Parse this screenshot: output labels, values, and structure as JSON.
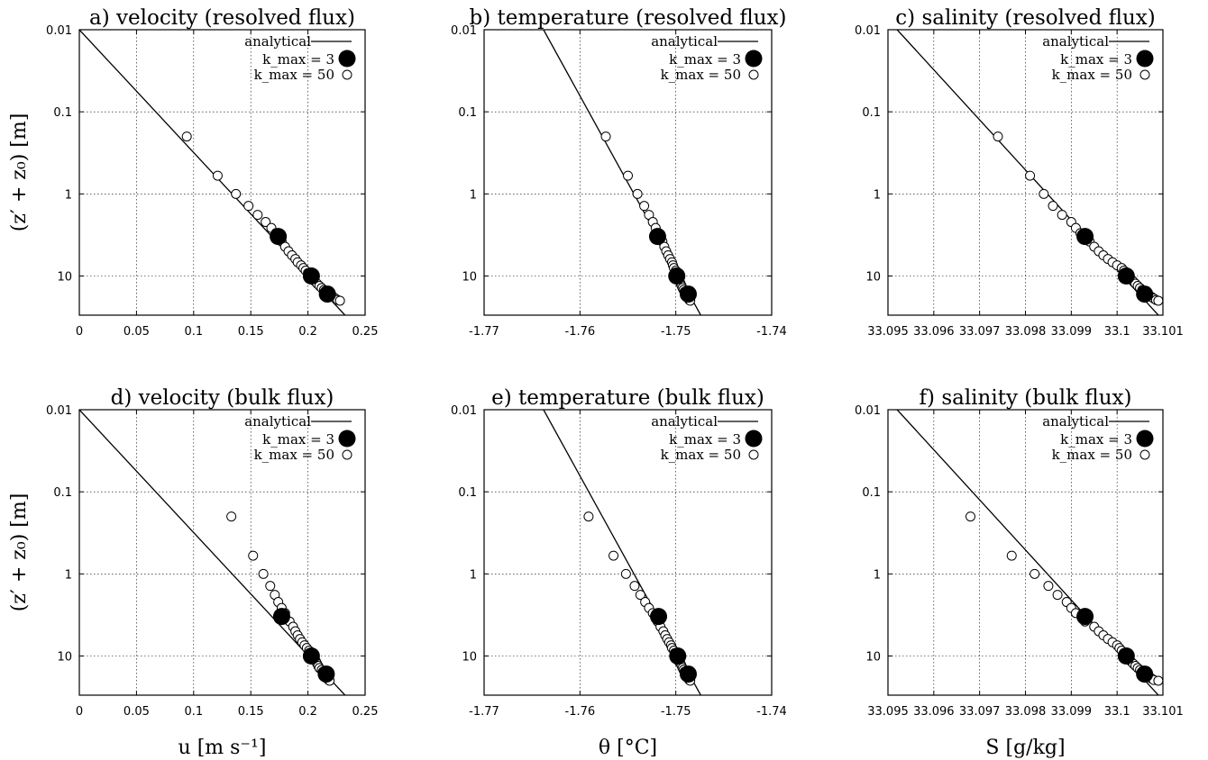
{
  "legend": {
    "analytical": "analytical",
    "kmax3": "k_max = 3",
    "kmax50": "k_max = 50"
  },
  "y_axis": {
    "label": "(z′ + z₀) [m]",
    "ticks": [
      "0.01",
      "0.1",
      "1",
      "10"
    ]
  },
  "x_labels": [
    "u [m s⁻¹]",
    "θ [°C]",
    "S [g/kg]"
  ],
  "chart_data": [
    {
      "type": "scatter",
      "title": "a) velocity (resolved flux)",
      "xlabel": "",
      "ylabel": "(z′ + z₀) [m]",
      "xlim": [
        0,
        0.25
      ],
      "ylim": [
        0.01,
        30
      ],
      "yscale": "log",
      "yaxis_inverted": true,
      "xticks": [
        "0",
        "0.05",
        "0.1",
        "0.15",
        "0.2",
        "0.25"
      ],
      "grid": true,
      "legend_position": "top-right",
      "analytical": {
        "x": [
          0.0,
          0.2324
        ],
        "y": [
          0.01,
          30
        ]
      },
      "series": [
        {
          "name": "k_max = 3",
          "marker": "filled-circle",
          "x": [
            0.174,
            0.203,
            0.217
          ],
          "y": [
            3.3,
            10,
            16.6
          ]
        },
        {
          "name": "k_max = 50",
          "marker": "open-circle",
          "x": [
            0.094,
            0.121,
            0.137,
            0.148,
            0.156,
            0.163,
            0.168,
            0.172,
            0.177,
            0.18,
            0.183,
            0.186,
            0.189,
            0.191,
            0.194,
            0.196,
            0.198,
            0.2,
            0.202,
            0.204,
            0.206,
            0.208,
            0.21,
            0.212,
            0.214,
            0.216,
            0.218,
            0.22,
            0.222,
            0.224,
            0.226,
            0.228
          ],
          "y": [
            0.2,
            0.6,
            1.0,
            1.4,
            1.8,
            2.2,
            2.6,
            3.0,
            3.8,
            4.4,
            5.0,
            5.6,
            6.2,
            6.8,
            7.4,
            8.0,
            8.6,
            9.2,
            10.0,
            10.8,
            11.6,
            12.4,
            13.2,
            14.0,
            14.8,
            15.6,
            16.4,
            17.2,
            18.0,
            18.8,
            19.6,
            20.0
          ]
        }
      ]
    },
    {
      "type": "scatter",
      "title": "b) temperature (resolved flux)",
      "xlabel": "",
      "ylabel": "",
      "xlim": [
        -1.77,
        -1.74
      ],
      "ylim": [
        0.01,
        30
      ],
      "yscale": "log",
      "yaxis_inverted": true,
      "xticks": [
        "-1.77",
        "-1.76",
        "-1.75",
        "-1.74"
      ],
      "grid": true,
      "legend_position": "top-right",
      "analytical": {
        "x": [
          -1.7638,
          -1.7474
        ],
        "y": [
          0.01,
          30
        ]
      },
      "series": [
        {
          "name": "k_max = 3",
          "marker": "filled-circle",
          "x": [
            -1.7519,
            -1.7499,
            -1.7487
          ],
          "y": [
            3.3,
            10,
            16.6
          ]
        },
        {
          "name": "k_max = 50",
          "marker": "open-circle",
          "x": [
            -1.7573,
            -1.755,
            -1.754,
            -1.7533,
            -1.7528,
            -1.7524,
            -1.7521,
            -1.7518,
            -1.7514,
            -1.7512,
            -1.751,
            -1.7508,
            -1.7506,
            -1.7504,
            -1.7503,
            -1.7502,
            -1.75,
            -1.7499,
            -1.7498,
            -1.7497,
            -1.7496,
            -1.7495,
            -1.7494,
            -1.7493,
            -1.7492,
            -1.7491,
            -1.749,
            -1.7489,
            -1.7488,
            -1.7487,
            -1.7486,
            -1.7485
          ],
          "y": [
            0.2,
            0.6,
            1.0,
            1.4,
            1.8,
            2.2,
            2.6,
            3.0,
            3.8,
            4.4,
            5.0,
            5.6,
            6.2,
            6.8,
            7.4,
            8.0,
            8.6,
            9.2,
            10.0,
            10.8,
            11.6,
            12.4,
            13.2,
            14.0,
            14.8,
            15.6,
            16.4,
            17.2,
            18.0,
            18.8,
            19.6,
            20.0
          ]
        }
      ]
    },
    {
      "type": "scatter",
      "title": "c) salinity (resolved flux)",
      "xlabel": "",
      "ylabel": "",
      "xlim": [
        33.095,
        33.101
      ],
      "ylim": [
        0.01,
        30
      ],
      "yscale": "log",
      "yaxis_inverted": true,
      "xticks": [
        "33.095",
        "33.096",
        "33.097",
        "33.098",
        "33.099",
        "33.1",
        "33.101"
      ],
      "grid": true,
      "legend_position": "top-right",
      "analytical": {
        "x": [
          33.0952,
          33.1009
        ],
        "y": [
          0.01,
          30
        ]
      },
      "series": [
        {
          "name": "k_max = 3",
          "marker": "filled-circle",
          "x": [
            33.0993,
            33.1002,
            33.1006
          ],
          "y": [
            3.3,
            10,
            16.6
          ]
        },
        {
          "name": "k_max = 50",
          "marker": "open-circle",
          "x": [
            33.0974,
            33.0981,
            33.0984,
            33.0986,
            33.0988,
            33.099,
            33.0991,
            33.0992,
            33.0994,
            33.0995,
            33.0996,
            33.0997,
            33.0998,
            33.0999,
            33.1,
            33.1001,
            33.10015,
            33.1002,
            33.10025,
            33.1003,
            33.10035,
            33.1004,
            33.10045,
            33.1005,
            33.10055,
            33.1006,
            33.10065,
            33.1007,
            33.10075,
            33.1008,
            33.10085,
            33.1009
          ],
          "y": [
            0.2,
            0.6,
            1.0,
            1.4,
            1.8,
            2.2,
            2.6,
            3.0,
            3.8,
            4.4,
            5.0,
            5.6,
            6.2,
            6.8,
            7.4,
            8.0,
            8.6,
            9.2,
            10.0,
            10.8,
            11.6,
            12.4,
            13.2,
            14.0,
            14.8,
            15.6,
            16.4,
            17.2,
            18.0,
            18.8,
            19.6,
            20.0
          ]
        }
      ]
    },
    {
      "type": "scatter",
      "title": "d) velocity (bulk flux)",
      "xlabel": "u [m s⁻¹]",
      "ylabel": "(z′ + z₀) [m]",
      "xlim": [
        0,
        0.25
      ],
      "ylim": [
        0.01,
        30
      ],
      "yscale": "log",
      "yaxis_inverted": true,
      "xticks": [
        "0",
        "0.05",
        "0.1",
        "0.15",
        "0.2",
        "0.25"
      ],
      "grid": true,
      "legend_position": "top-right",
      "analytical": {
        "x": [
          0.0,
          0.2324
        ],
        "y": [
          0.01,
          30
        ]
      },
      "series": [
        {
          "name": "k_max = 3",
          "marker": "filled-circle",
          "x": [
            0.177,
            0.203,
            0.216
          ],
          "y": [
            3.3,
            10,
            16.6
          ]
        },
        {
          "name": "k_max = 50",
          "marker": "open-circle",
          "x": [
            0.133,
            0.152,
            0.161,
            0.167,
            0.171,
            0.174,
            0.177,
            0.18,
            0.184,
            0.187,
            0.189,
            0.191,
            0.193,
            0.195,
            0.197,
            0.199,
            0.201,
            0.202,
            0.204,
            0.205,
            0.207,
            0.208,
            0.209,
            0.21,
            0.212,
            0.213,
            0.214,
            0.215,
            0.216,
            0.217,
            0.218,
            0.219
          ],
          "y": [
            0.2,
            0.6,
            1.0,
            1.4,
            1.8,
            2.2,
            2.6,
            3.0,
            3.8,
            4.4,
            5.0,
            5.6,
            6.2,
            6.8,
            7.4,
            8.0,
            8.6,
            9.2,
            10.0,
            10.8,
            11.6,
            12.4,
            13.2,
            14.0,
            14.8,
            15.6,
            16.4,
            17.2,
            18.0,
            18.8,
            19.6,
            20.0
          ]
        }
      ]
    },
    {
      "type": "scatter",
      "title": "e) temperature (bulk flux)",
      "xlabel": "θ [°C]",
      "ylabel": "",
      "xlim": [
        -1.77,
        -1.74
      ],
      "ylim": [
        0.01,
        30
      ],
      "yscale": "log",
      "yaxis_inverted": true,
      "xticks": [
        "-1.77",
        "-1.76",
        "-1.75",
        "-1.74"
      ],
      "grid": true,
      "legend_position": "top-right",
      "analytical": {
        "x": [
          -1.7638,
          -1.7474
        ],
        "y": [
          0.01,
          30
        ]
      },
      "series": [
        {
          "name": "k_max = 3",
          "marker": "filled-circle",
          "x": [
            -1.7518,
            -1.7498,
            -1.7487
          ],
          "y": [
            3.3,
            10,
            16.6
          ]
        },
        {
          "name": "k_max = 50",
          "marker": "open-circle",
          "x": [
            -1.7591,
            -1.7565,
            -1.7552,
            -1.7543,
            -1.7537,
            -1.7532,
            -1.7528,
            -1.7524,
            -1.7519,
            -1.7516,
            -1.7513,
            -1.7511,
            -1.7509,
            -1.7507,
            -1.7505,
            -1.7504,
            -1.7502,
            -1.7501,
            -1.7499,
            -1.7498,
            -1.7497,
            -1.7495,
            -1.7494,
            -1.7493,
            -1.7492,
            -1.7491,
            -1.749,
            -1.7489,
            -1.7488,
            -1.7487,
            -1.7486,
            -1.7485
          ],
          "y": [
            0.2,
            0.6,
            1.0,
            1.4,
            1.8,
            2.2,
            2.6,
            3.0,
            3.8,
            4.4,
            5.0,
            5.6,
            6.2,
            6.8,
            7.4,
            8.0,
            8.6,
            9.2,
            10.0,
            10.8,
            11.6,
            12.4,
            13.2,
            14.0,
            14.8,
            15.6,
            16.4,
            17.2,
            18.0,
            18.8,
            19.6,
            20.0
          ]
        }
      ]
    },
    {
      "type": "scatter",
      "title": "f) salinity (bulk flux)",
      "xlabel": "S [g/kg]",
      "ylabel": "",
      "xlim": [
        33.095,
        33.101
      ],
      "ylim": [
        0.01,
        30
      ],
      "yscale": "log",
      "yaxis_inverted": true,
      "xticks": [
        "33.095",
        "33.096",
        "33.097",
        "33.098",
        "33.099",
        "33.1",
        "33.101"
      ],
      "grid": true,
      "legend_position": "top-right",
      "analytical": {
        "x": [
          33.0952,
          33.1009
        ],
        "y": [
          0.01,
          30
        ]
      },
      "series": [
        {
          "name": "k_max = 3",
          "marker": "filled-circle",
          "x": [
            33.0993,
            33.1002,
            33.1006
          ],
          "y": [
            3.3,
            10,
            16.6
          ]
        },
        {
          "name": "k_max = 50",
          "marker": "open-circle",
          "x": [
            33.0968,
            33.0977,
            33.0982,
            33.0985,
            33.0987,
            33.0989,
            33.099,
            33.0991,
            33.0993,
            33.0995,
            33.0996,
            33.0997,
            33.0998,
            33.0999,
            33.1,
            33.10005,
            33.1001,
            33.10015,
            33.1002,
            33.10025,
            33.1003,
            33.10035,
            33.1004,
            33.10045,
            33.1005,
            33.10055,
            33.1006,
            33.10065,
            33.1007,
            33.10075,
            33.1008,
            33.1009
          ],
          "y": [
            0.2,
            0.6,
            1.0,
            1.4,
            1.8,
            2.2,
            2.6,
            3.0,
            3.8,
            4.4,
            5.0,
            5.6,
            6.2,
            6.8,
            7.4,
            8.0,
            8.6,
            9.2,
            10.0,
            10.8,
            11.6,
            12.4,
            13.2,
            14.0,
            14.8,
            15.6,
            16.4,
            17.2,
            18.0,
            18.8,
            19.6,
            20.0
          ]
        }
      ]
    }
  ]
}
